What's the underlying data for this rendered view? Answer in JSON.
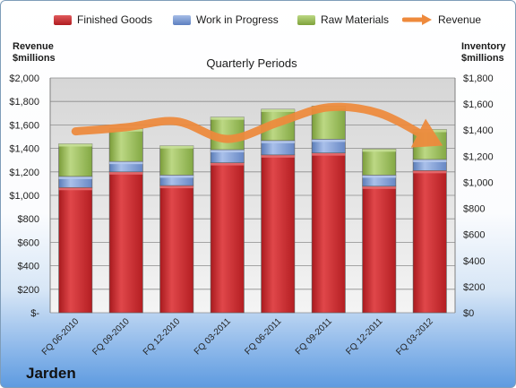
{
  "legend": {
    "finished": "Finished Goods",
    "wip": "Work in Progress",
    "raw": "Raw Materials",
    "revenue": "Revenue"
  },
  "axes": {
    "left_title_line1": "Revenue",
    "left_title_line2": "$millions",
    "right_title_line1": "Inventory",
    "right_title_line2": "$millions"
  },
  "plot_title": "Quarterly Periods",
  "company": "Jarden",
  "colors": {
    "finished": "#cc2a2e",
    "wip": "#7b9bd1",
    "raw": "#9cbf55",
    "revenue": "#ee8a3c"
  },
  "chart_data": {
    "type": "bar",
    "stacked": true,
    "categories": [
      "FQ 06-2010",
      "FQ 09-2010",
      "FQ 12-2010",
      "FQ 03-2011",
      "FQ 06-2011",
      "FQ 09-2011",
      "FQ 12-2011",
      "FQ 03-2012"
    ],
    "series": [
      {
        "name": "Finished Goods",
        "axis": "right",
        "values": [
          960,
          1080,
          975,
          1150,
          1210,
          1225,
          970,
          1090
        ]
      },
      {
        "name": "Work in Progress",
        "axis": "right",
        "values": [
          85,
          80,
          80,
          100,
          110,
          105,
          85,
          85
        ]
      },
      {
        "name": "Raw Materials",
        "axis": "right",
        "values": [
          250,
          250,
          225,
          250,
          240,
          255,
          200,
          230
        ]
      },
      {
        "name": "Revenue",
        "type": "line",
        "axis": "left",
        "values": [
          1545,
          1580,
          1630,
          1480,
          1620,
          1750,
          1700,
          1480
        ]
      }
    ],
    "left_axis": {
      "ylim": [
        0,
        2000
      ],
      "ticks": [
        "$-",
        "$200",
        "$400",
        "$600",
        "$800",
        "$1,000",
        "$1,200",
        "$1,400",
        "$1,600",
        "$1,800",
        "$2,000"
      ]
    },
    "right_axis": {
      "ylim": [
        0,
        1800
      ],
      "ticks": [
        "$0",
        "$200",
        "$400",
        "$600",
        "$800",
        "$1,000",
        "$1,200",
        "$1,400",
        "$1,600",
        "$1,800"
      ]
    },
    "grid": true,
    "legend_position": "top"
  }
}
